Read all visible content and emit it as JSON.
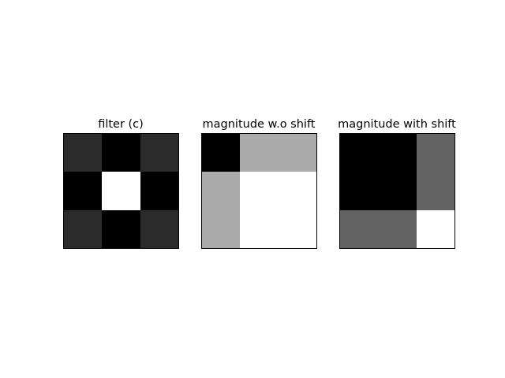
{
  "chart_data": [
    {
      "type": "heatmap",
      "title": "filter (c)",
      "colormap": "gray",
      "values": [
        [
          0.17,
          0.0,
          0.17
        ],
        [
          0.0,
          1.0,
          0.0
        ],
        [
          0.17,
          0.0,
          0.17
        ]
      ]
    },
    {
      "type": "heatmap",
      "title": "magnitude w.o shift",
      "colormap": "gray",
      "values": [
        [
          0.0,
          0.67,
          0.67
        ],
        [
          0.67,
          1.0,
          1.0
        ],
        [
          0.67,
          1.0,
          1.0
        ]
      ]
    },
    {
      "type": "heatmap",
      "title": "magnitude with shift",
      "colormap": "gray",
      "values": [
        [
          0.0,
          0.0,
          0.39
        ],
        [
          0.0,
          0.0,
          0.39
        ],
        [
          0.39,
          0.39,
          1.0
        ]
      ]
    }
  ]
}
